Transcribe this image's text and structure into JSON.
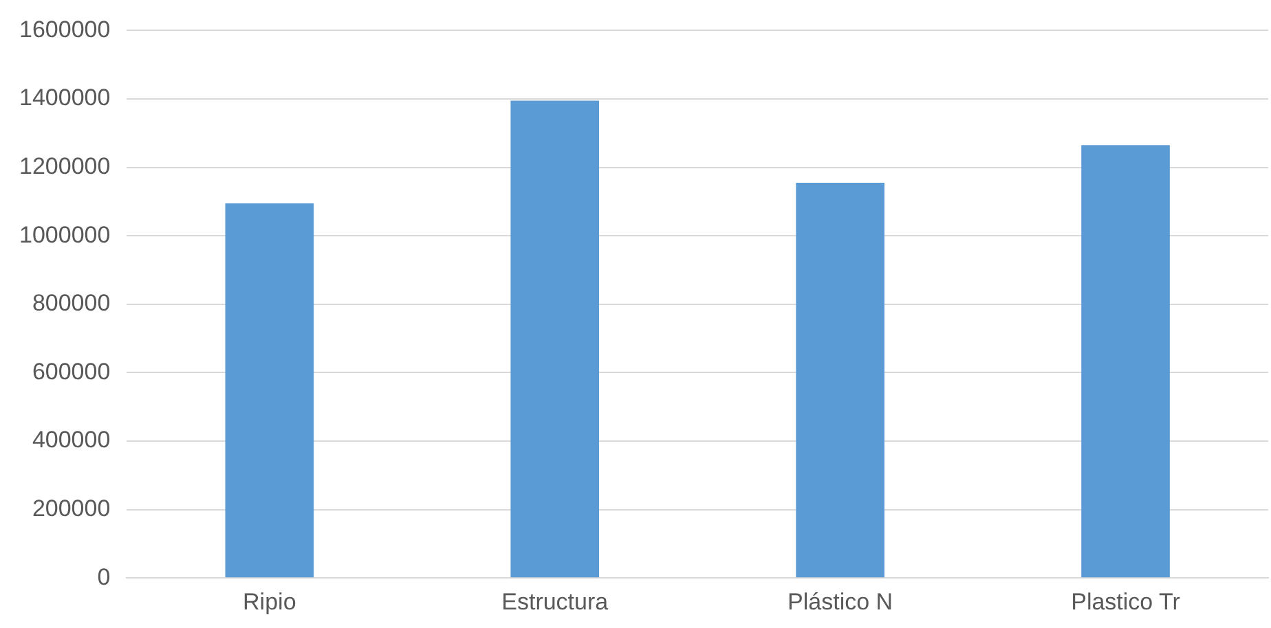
{
  "chart_data": {
    "type": "bar",
    "categories": [
      "Ripio",
      "Estructura",
      "Plástico N",
      "Plastico Tr"
    ],
    "values": [
      1095000,
      1395000,
      1155000,
      1265000
    ],
    "color": "#5b9bd5",
    "ylim": [
      0,
      1600000
    ],
    "yticks": [
      0,
      200000,
      400000,
      600000,
      800000,
      1000000,
      1200000,
      1400000,
      1600000
    ],
    "grid": "y",
    "legend": false
  }
}
